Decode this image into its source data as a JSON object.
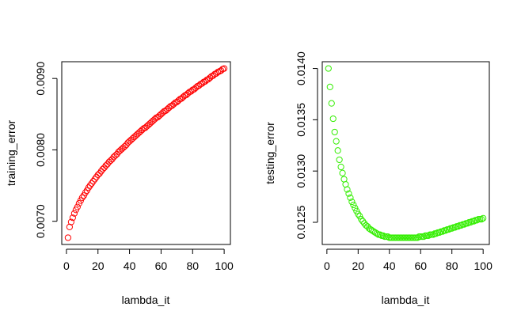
{
  "chart_data": [
    {
      "type": "scatter",
      "xlabel": "lambda_it",
      "ylabel": "training_error",
      "xlim": [
        0,
        100
      ],
      "ylim": [
        0.0066,
        0.0092
      ],
      "xticks": [
        0,
        20,
        40,
        60,
        80,
        100
      ],
      "xtick_labels": [
        "0",
        "20",
        "40",
        "60",
        "80",
        "100"
      ],
      "yticks": [
        0.007,
        0.008,
        0.009
      ],
      "ytick_labels": [
        "0.0070",
        "0.0080",
        "0.0090"
      ],
      "marker": "open-circle",
      "color": "#ff0000",
      "series": [
        {
          "x": [
            1,
            2,
            3,
            4,
            5,
            6,
            7,
            8,
            9,
            10,
            11,
            12,
            13,
            14,
            15,
            16,
            17,
            18,
            19,
            20,
            21,
            22,
            23,
            24,
            25,
            26,
            27,
            28,
            29,
            30,
            31,
            32,
            33,
            34,
            35,
            36,
            37,
            38,
            39,
            40,
            41,
            42,
            43,
            44,
            45,
            46,
            47,
            48,
            49,
            50,
            51,
            52,
            53,
            54,
            55,
            56,
            57,
            58,
            59,
            60,
            61,
            62,
            63,
            64,
            65,
            66,
            67,
            68,
            69,
            70,
            71,
            72,
            73,
            74,
            75,
            76,
            77,
            78,
            79,
            80,
            81,
            82,
            83,
            84,
            85,
            86,
            87,
            88,
            89,
            90,
            91,
            92,
            93,
            94,
            95,
            96,
            97,
            98,
            99,
            100
          ],
          "y": [
            0.00677,
            0.00692,
            0.00699,
            0.00705,
            0.00711,
            0.00716,
            0.0072,
            0.00725,
            0.00729,
            0.00733,
            0.00736,
            0.0074,
            0.00743,
            0.00747,
            0.0075,
            0.00753,
            0.00756,
            0.00759,
            0.00762,
            0.00765,
            0.00767,
            0.0077,
            0.00773,
            0.00775,
            0.00778,
            0.0078,
            0.00783,
            0.00785,
            0.00787,
            0.0079,
            0.00792,
            0.00794,
            0.00797,
            0.00799,
            0.00801,
            0.00803,
            0.00805,
            0.00807,
            0.0081,
            0.00812,
            0.00814,
            0.00816,
            0.00818,
            0.0082,
            0.00822,
            0.00824,
            0.00826,
            0.00828,
            0.0083,
            0.00831,
            0.00833,
            0.00835,
            0.00837,
            0.00839,
            0.00841,
            0.00843,
            0.00845,
            0.00846,
            0.00848,
            0.0085,
            0.00852,
            0.00854,
            0.00855,
            0.00857,
            0.00859,
            0.00861,
            0.00862,
            0.00864,
            0.00866,
            0.00867,
            0.00869,
            0.00871,
            0.00872,
            0.00874,
            0.00876,
            0.00877,
            0.00879,
            0.00881,
            0.00882,
            0.00884,
            0.00885,
            0.00887,
            0.00889,
            0.0089,
            0.00892,
            0.00893,
            0.00895,
            0.00896,
            0.00898,
            0.00899,
            0.00901,
            0.00903,
            0.00904,
            0.00906,
            0.00907,
            0.00909,
            0.0091,
            0.00911,
            0.00913,
            0.00914
          ]
        }
      ]
    },
    {
      "type": "scatter",
      "xlabel": "lambda_it",
      "ylabel": "testing_error",
      "xlim": [
        0,
        100
      ],
      "ylim": [
        0.01233,
        0.01405
      ],
      "xticks": [
        0,
        20,
        40,
        60,
        80,
        100
      ],
      "xtick_labels": [
        "0",
        "20",
        "40",
        "60",
        "80",
        "100"
      ],
      "yticks": [
        0.0125,
        0.013,
        0.0135,
        0.014
      ],
      "ytick_labels": [
        "0.0125",
        "0.0130",
        "0.0135",
        "0.0140"
      ],
      "marker": "open-circle",
      "color": "#33ee00",
      "series": [
        {
          "x": [
            1,
            2,
            3,
            4,
            5,
            6,
            7,
            8,
            9,
            10,
            11,
            12,
            13,
            14,
            15,
            16,
            17,
            18,
            19,
            20,
            21,
            22,
            23,
            24,
            25,
            26,
            27,
            28,
            29,
            30,
            31,
            32,
            33,
            34,
            35,
            36,
            37,
            38,
            39,
            40,
            41,
            42,
            43,
            44,
            45,
            46,
            47,
            48,
            49,
            50,
            51,
            52,
            53,
            54,
            55,
            56,
            57,
            58,
            59,
            60,
            61,
            62,
            63,
            64,
            65,
            66,
            67,
            68,
            69,
            70,
            71,
            72,
            73,
            74,
            75,
            76,
            77,
            78,
            79,
            80,
            81,
            82,
            83,
            84,
            85,
            86,
            87,
            88,
            89,
            90,
            91,
            92,
            93,
            94,
            95,
            96,
            97,
            98,
            99,
            100
          ],
          "y": [
            0.014,
            0.01382,
            0.01366,
            0.01351,
            0.01338,
            0.01329,
            0.0132,
            0.01311,
            0.01304,
            0.01298,
            0.01292,
            0.01287,
            0.01282,
            0.01278,
            0.01274,
            0.0127,
            0.01267,
            0.01264,
            0.01261,
            0.01258,
            0.01256,
            0.01253,
            0.01251,
            0.01249,
            0.01247,
            0.01246,
            0.01244,
            0.01243,
            0.01242,
            0.01241,
            0.0124,
            0.01239,
            0.01238,
            0.01238,
            0.01237,
            0.01237,
            0.01236,
            0.01236,
            0.01236,
            0.01235,
            0.01235,
            0.01235,
            0.01235,
            0.01235,
            0.01235,
            0.01235,
            0.01235,
            0.01235,
            0.01235,
            0.01235,
            0.01235,
            0.01235,
            0.01235,
            0.01235,
            0.01235,
            0.01235,
            0.01235,
            0.01235,
            0.01236,
            0.01236,
            0.01236,
            0.01236,
            0.01237,
            0.01237,
            0.01237,
            0.01238,
            0.01238,
            0.01238,
            0.01239,
            0.01239,
            0.0124,
            0.0124,
            0.01241,
            0.01241,
            0.01242,
            0.01242,
            0.01243,
            0.01243,
            0.01244,
            0.01244,
            0.01245,
            0.01245,
            0.01246,
            0.01246,
            0.01247,
            0.01247,
            0.01248,
            0.01248,
            0.01249,
            0.01249,
            0.0125,
            0.0125,
            0.01251,
            0.01251,
            0.01252,
            0.01252,
            0.01253,
            0.01253,
            0.01253,
            0.01254
          ]
        }
      ]
    }
  ]
}
